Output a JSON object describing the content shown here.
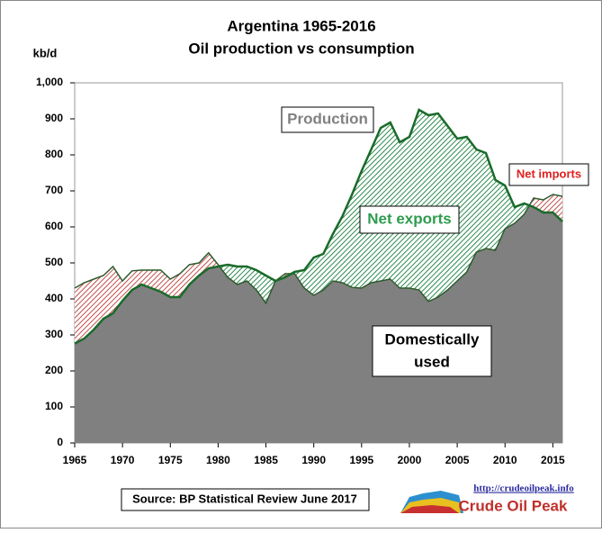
{
  "chart_data": {
    "type": "area",
    "title": "Argentina 1965-2016",
    "subtitle": "Oil production vs consumption",
    "y_axis_label": "kb/d",
    "x": [
      1965,
      1966,
      1967,
      1968,
      1969,
      1970,
      1971,
      1972,
      1973,
      1974,
      1975,
      1976,
      1977,
      1978,
      1979,
      1980,
      1981,
      1982,
      1983,
      1984,
      1985,
      1986,
      1987,
      1988,
      1989,
      1990,
      1991,
      1992,
      1993,
      1994,
      1995,
      1996,
      1997,
      1998,
      1999,
      2000,
      2001,
      2002,
      2003,
      2004,
      2005,
      2006,
      2007,
      2008,
      2009,
      2010,
      2011,
      2012,
      2013,
      2014,
      2015,
      2016
    ],
    "series": [
      {
        "name": "Production",
        "color": "#1a6b2a",
        "values": [
          276,
          290,
          315,
          345,
          360,
          395,
          425,
          440,
          430,
          420,
          405,
          405,
          440,
          465,
          485,
          490,
          495,
          490,
          490,
          480,
          465,
          450,
          460,
          475,
          480,
          515,
          525,
          580,
          630,
          690,
          755,
          815,
          875,
          890,
          835,
          850,
          925,
          910,
          915,
          880,
          845,
          850,
          815,
          805,
          730,
          715,
          655,
          665,
          655,
          640,
          640,
          615
        ]
      },
      {
        "name": "Consumption",
        "color": "#2d5a2d",
        "values": [
          430,
          445,
          455,
          465,
          490,
          450,
          478,
          480,
          480,
          480,
          455,
          470,
          495,
          500,
          528,
          495,
          460,
          440,
          450,
          425,
          388,
          450,
          470,
          470,
          430,
          410,
          425,
          450,
          445,
          432,
          430,
          445,
          450,
          455,
          430,
          430,
          425,
          393,
          405,
          425,
          450,
          475,
          530,
          540,
          535,
          595,
          610,
          635,
          680,
          675,
          690,
          685
        ]
      }
    ],
    "xlim": [
      1965,
      2016
    ],
    "xticks": [
      1965,
      1970,
      1975,
      1980,
      1985,
      1990,
      1995,
      2000,
      2005,
      2010,
      2015
    ],
    "ylim": [
      0,
      1000
    ],
    "yticks": [
      0,
      100,
      200,
      300,
      400,
      500,
      600,
      700,
      800,
      900,
      {
        "value": 1000,
        "label": "1,000"
      }
    ],
    "annotations": {
      "production": "Production",
      "net_exports": "Net exports",
      "net_imports": "Net imports",
      "domestic_1": "Domestically",
      "domestic_2": "used"
    },
    "source": "Source: BP Statistical Review  June 2017",
    "logo_url": "http://crudeoilpeak.info",
    "logo_name": "Crude Oil Peak"
  }
}
